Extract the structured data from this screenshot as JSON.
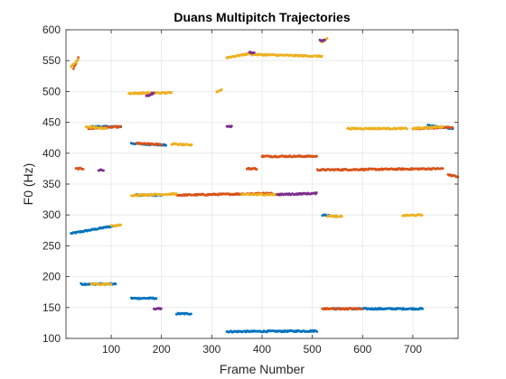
{
  "chart_data": {
    "type": "scatter",
    "title": "Duans Multipitch Trajectories",
    "xlabel": "Frame Number",
    "ylabel": "F0 (Hz)",
    "xlim": [
      10,
      790
    ],
    "ylim": [
      100,
      600
    ],
    "xticks": [
      100,
      200,
      300,
      400,
      500,
      600,
      700
    ],
    "yticks": [
      100,
      150,
      200,
      250,
      300,
      350,
      400,
      450,
      500,
      550,
      600
    ],
    "grid": true,
    "colors": [
      "#0072BD",
      "#D95319",
      "#EDB120",
      "#7E2F8E"
    ],
    "series": [
      {
        "color": "#0072BD",
        "segments": [
          {
            "x": [
              20,
              110
            ],
            "y": [
              270,
              283
            ]
          },
          {
            "x": [
              40,
              110
            ],
            "y": [
              188,
              188
            ]
          },
          {
            "x": [
              60,
              120
            ],
            "y": [
              443,
              443
            ]
          },
          {
            "x": [
              140,
              210
            ],
            "y": [
              416,
              413
            ]
          },
          {
            "x": [
              140,
              190
            ],
            "y": [
              165,
              165
            ]
          },
          {
            "x": [
              150,
              200
            ],
            "y": [
              332,
              332
            ]
          },
          {
            "x": [
              230,
              260
            ],
            "y": [
              140,
              140
            ]
          },
          {
            "x": [
              330,
              510
            ],
            "y": [
              111,
              112
            ]
          },
          {
            "x": [
              520,
              550
            ],
            "y": [
              300,
              298
            ]
          },
          {
            "x": [
              540,
              720
            ],
            "y": [
              148,
              148
            ]
          },
          {
            "x": [
              730,
              780
            ],
            "y": [
              445,
              440
            ]
          }
        ]
      },
      {
        "color": "#D95319",
        "segments": [
          {
            "x": [
              25,
              35
            ],
            "y": [
              537,
              555
            ]
          },
          {
            "x": [
              30,
              45
            ],
            "y": [
              375,
              375
            ]
          },
          {
            "x": [
              55,
              120
            ],
            "y": [
              440,
              443
            ]
          },
          {
            "x": [
              150,
              200
            ],
            "y": [
              416,
              414
            ]
          },
          {
            "x": [
              230,
              420
            ],
            "y": [
              332,
              335
            ]
          },
          {
            "x": [
              370,
              390
            ],
            "y": [
              375,
              375
            ]
          },
          {
            "x": [
              400,
              510
            ],
            "y": [
              395,
              395
            ]
          },
          {
            "x": [
              510,
              760
            ],
            "y": [
              373,
              375
            ]
          },
          {
            "x": [
              520,
              600
            ],
            "y": [
              148,
              148
            ]
          },
          {
            "x": [
              700,
              780
            ],
            "y": [
              440,
              442
            ]
          },
          {
            "x": [
              770,
              790
            ],
            "y": [
              365,
              362
            ]
          }
        ]
      },
      {
        "color": "#EDB120",
        "segments": [
          {
            "x": [
              20,
              35
            ],
            "y": [
              540,
              552
            ]
          },
          {
            "x": [
              50,
              90
            ],
            "y": [
              443,
              440
            ]
          },
          {
            "x": [
              60,
              100
            ],
            "y": [
              188,
              188
            ]
          },
          {
            "x": [
              100,
              120
            ],
            "y": [
              282,
              284
            ]
          },
          {
            "x": [
              135,
              220
            ],
            "y": [
              497,
              498
            ]
          },
          {
            "x": [
              140,
              230
            ],
            "y": [
              332,
              334
            ]
          },
          {
            "x": [
              220,
              260
            ],
            "y": [
              415,
              413
            ]
          },
          {
            "x": [
              310,
              320
            ],
            "y": [
              500,
              503
            ]
          },
          {
            "x": [
              330,
              380
            ],
            "y": [
              555,
              562
            ]
          },
          {
            "x": [
              380,
              520
            ],
            "y": [
              560,
              557
            ]
          },
          {
            "x": [
              360,
              440
            ],
            "y": [
              333,
              333
            ]
          },
          {
            "x": [
              520,
              530
            ],
            "y": [
              580,
              587
            ]
          },
          {
            "x": [
              530,
              560
            ],
            "y": [
              298,
              298
            ]
          },
          {
            "x": [
              570,
              690
            ],
            "y": [
              440,
              440
            ]
          },
          {
            "x": [
              680,
              720
            ],
            "y": [
              299,
              300
            ]
          },
          {
            "x": [
              700,
              760
            ],
            "y": [
              440,
              443
            ]
          }
        ]
      },
      {
        "color": "#7E2F8E",
        "segments": [
          {
            "x": [
              75,
              85
            ],
            "y": [
              373,
              373
            ]
          },
          {
            "x": [
              170,
              185
            ],
            "y": [
              492,
              498
            ]
          },
          {
            "x": [
              185,
              200
            ],
            "y": [
              148,
              148
            ]
          },
          {
            "x": [
              330,
              340
            ],
            "y": [
              443,
              443
            ]
          },
          {
            "x": [
              375,
              385
            ],
            "y": [
              563,
              563
            ]
          },
          {
            "x": [
              430,
              510
            ],
            "y": [
              333,
              335
            ]
          },
          {
            "x": [
              515,
              525
            ],
            "y": [
              583,
              583
            ]
          }
        ]
      }
    ]
  }
}
